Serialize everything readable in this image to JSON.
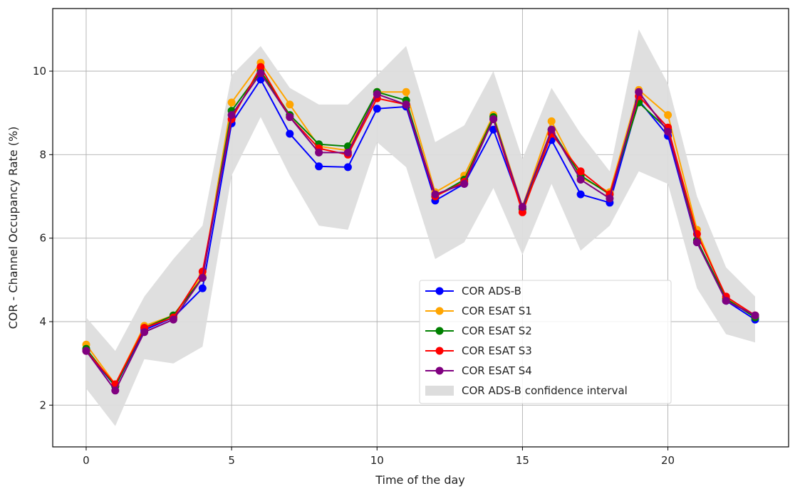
{
  "chart_data": {
    "type": "line",
    "title": "",
    "xlabel": "Time of the day",
    "ylabel": "COR - Channel Occupancy Rate (%)",
    "xlim": [
      -1.15,
      24.15
    ],
    "ylim": [
      1.0,
      11.5
    ],
    "xticks": [
      0,
      5,
      10,
      15,
      20
    ],
    "yticks": [
      2,
      4,
      6,
      8,
      10
    ],
    "xtick_labels": [
      "0",
      "5",
      "10",
      "15",
      "20"
    ],
    "ytick_labels": [
      "2",
      "4",
      "6",
      "8",
      "10"
    ],
    "grid": true,
    "legend_position": "lower-right",
    "x": [
      0,
      1,
      2,
      3,
      4,
      5,
      6,
      7,
      8,
      9,
      10,
      11,
      12,
      13,
      14,
      15,
      16,
      17,
      18,
      19,
      20,
      21,
      22,
      23
    ],
    "confidence_interval": {
      "name": "COR ADS-B confidence interval",
      "color": "#dddddd",
      "lower": [
        2.4,
        1.5,
        3.1,
        3.0,
        3.4,
        7.5,
        8.9,
        7.5,
        6.3,
        6.2,
        8.3,
        7.7,
        5.5,
        5.9,
        7.2,
        5.6,
        7.3,
        5.7,
        6.3,
        7.6,
        7.3,
        4.8,
        3.7,
        3.5
      ],
      "upper": [
        4.1,
        3.3,
        4.6,
        5.5,
        6.3,
        9.9,
        10.6,
        9.6,
        9.2,
        9.2,
        9.9,
        10.6,
        8.3,
        8.7,
        10.0,
        7.9,
        9.6,
        8.5,
        7.6,
        11.0,
        9.7,
        7.0,
        5.3,
        4.6
      ]
    },
    "series": [
      {
        "name": "COR ADS-B",
        "color": "#0000ff",
        "values": [
          3.3,
          2.45,
          3.8,
          4.1,
          4.8,
          8.75,
          9.8,
          8.5,
          7.72,
          7.7,
          9.1,
          9.15,
          6.9,
          7.3,
          8.6,
          6.7,
          8.35,
          7.05,
          6.85,
          9.3,
          8.45,
          5.9,
          4.5,
          4.05
        ]
      },
      {
        "name": "COR ESAT S1",
        "color": "#ffa500",
        "values": [
          3.45,
          2.5,
          3.9,
          4.15,
          5.1,
          9.25,
          10.2,
          9.2,
          8.2,
          8.1,
          9.5,
          9.5,
          7.1,
          7.5,
          8.95,
          6.75,
          8.8,
          7.45,
          7.1,
          9.55,
          8.95,
          6.2,
          4.55,
          4.15
        ]
      },
      {
        "name": "COR ESAT S2",
        "color": "#008000",
        "values": [
          3.35,
          2.45,
          3.85,
          4.15,
          5.05,
          9.05,
          10.0,
          8.95,
          8.25,
          8.2,
          9.5,
          9.3,
          7.0,
          7.4,
          8.9,
          6.7,
          8.6,
          7.5,
          7.05,
          9.25,
          8.6,
          5.95,
          4.55,
          4.1
        ]
      },
      {
        "name": "COR ESAT S3",
        "color": "#ff0000",
        "values": [
          3.3,
          2.5,
          3.85,
          4.1,
          5.2,
          8.85,
          10.1,
          8.9,
          8.15,
          8.0,
          9.35,
          9.2,
          7.0,
          7.35,
          8.85,
          6.62,
          8.5,
          7.6,
          7.05,
          9.4,
          8.65,
          6.1,
          4.6,
          4.15
        ]
      },
      {
        "name": "COR ESAT S4",
        "color": "#800080",
        "values": [
          3.3,
          2.35,
          3.75,
          4.05,
          5.05,
          8.95,
          9.95,
          8.9,
          8.05,
          8.05,
          9.45,
          9.2,
          7.05,
          7.3,
          8.85,
          6.75,
          8.6,
          7.4,
          6.95,
          9.5,
          8.55,
          5.9,
          4.5,
          4.15
        ]
      }
    ],
    "legend": [
      {
        "label": "COR ADS-B",
        "kind": "line",
        "color": "#0000ff"
      },
      {
        "label": "COR ESAT S1",
        "kind": "line",
        "color": "#ffa500"
      },
      {
        "label": "COR ESAT S2",
        "kind": "line",
        "color": "#008000"
      },
      {
        "label": "COR ESAT S3",
        "kind": "line",
        "color": "#ff0000"
      },
      {
        "label": "COR ESAT S4",
        "kind": "line",
        "color": "#800080"
      },
      {
        "label": "COR ADS-B confidence interval",
        "kind": "patch",
        "color": "#dddddd"
      }
    ]
  }
}
